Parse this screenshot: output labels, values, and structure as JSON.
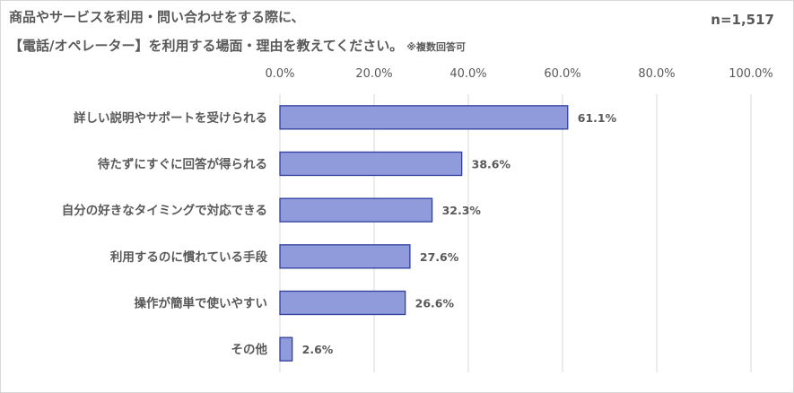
{
  "header": {
    "title_line1": "商品やサービスを利用・問い合わせをする際に、",
    "title_line2": "【電話/オペレーター】を利用する場面・理由を教えてください。",
    "note": "※複数回答可",
    "sample_size": "n=1,517"
  },
  "chart_data": {
    "type": "bar",
    "orientation": "horizontal",
    "categories": [
      "詳しい説明やサポートを受けられる",
      "待たずにすぐに回答が得られる",
      "自分の好きなタイミングで対応できる",
      "利用するのに慣れている手段",
      "操作が簡単で使いやすい",
      "その他"
    ],
    "values": [
      61.1,
      38.6,
      32.3,
      27.6,
      26.6,
      2.6
    ],
    "value_labels": [
      "61.1%",
      "38.6%",
      "32.3%",
      "27.6%",
      "26.6%",
      "2.6%"
    ],
    "xlim": [
      0,
      100
    ],
    "xticks": [
      0,
      20,
      40,
      60,
      80,
      100
    ],
    "xtick_labels": [
      "0.0%",
      "20.0%",
      "40.0%",
      "60.0%",
      "80.0%",
      "100.0%"
    ],
    "x_axis_position": "top",
    "grid": true,
    "legend": "none",
    "colors": {
      "bar_fill": "#8f9bdb",
      "bar_stroke": "#2f3f9e",
      "grid": "#d9d9d9",
      "text": "#595959"
    }
  }
}
